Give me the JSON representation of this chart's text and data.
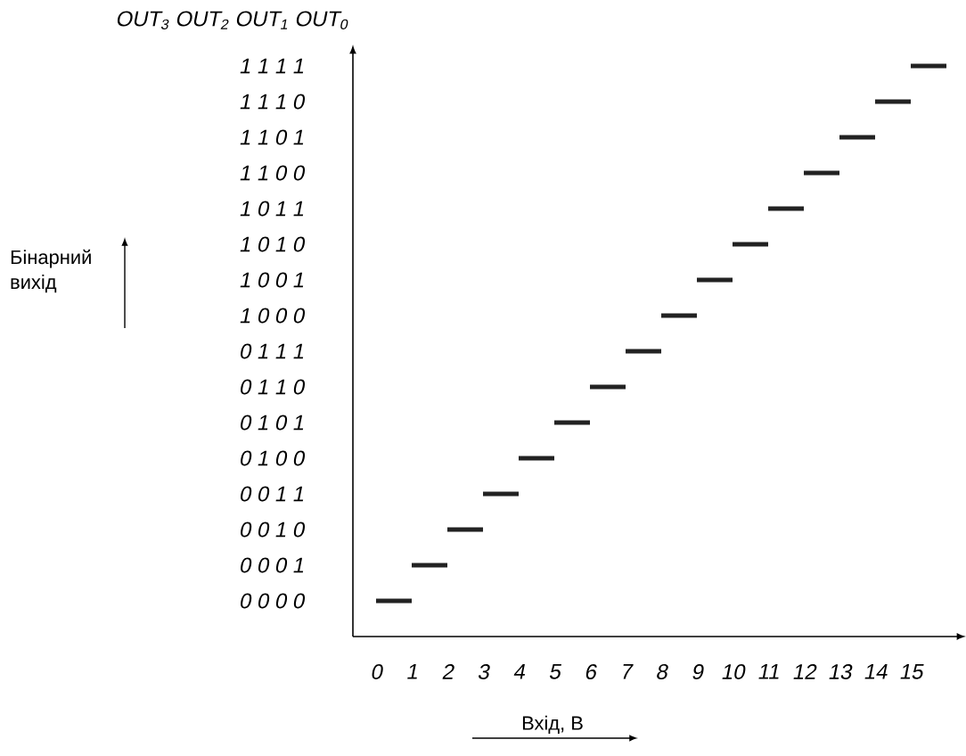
{
  "chart_data": {
    "type": "bar",
    "orientation": "horizontal",
    "xlabel": "Вхід, В",
    "annotations": [
      "OUT$_{3}$ OUT$_{2}$ OUT$_{1}$ OUT$_{0}$",
      "Бінарний вихід"
    ],
    "categories": [
      "1 1 1 1",
      "1 1 1 0",
      "1 1 0 1",
      "1 1 0 0",
      "1 0 1 1",
      "1 0 1 0",
      "1 0 0 1",
      "1 0 0 0",
      "0 1 1 1",
      "0 1 1 0",
      "0 1 0 1",
      "0 1 0 0",
      "0 0 1 1",
      "0 0 1 0",
      "0 0 0 1",
      "0 0 0 0"
    ],
    "base": [
      15,
      14,
      13,
      12,
      11,
      10,
      9,
      8,
      7,
      6,
      5,
      4,
      3,
      2,
      1,
      0
    ],
    "values": [
      1,
      1,
      1,
      1,
      1,
      1,
      1,
      1,
      1,
      1,
      1,
      1,
      1,
      1,
      1,
      1
    ],
    "color": "#222222",
    "xlim": [
      -0.65,
      16.3
    ],
    "xticks": [
      0,
      1,
      2,
      3,
      4,
      5,
      6,
      7,
      8,
      9,
      10,
      11,
      12,
      13,
      14,
      15
    ]
  }
}
